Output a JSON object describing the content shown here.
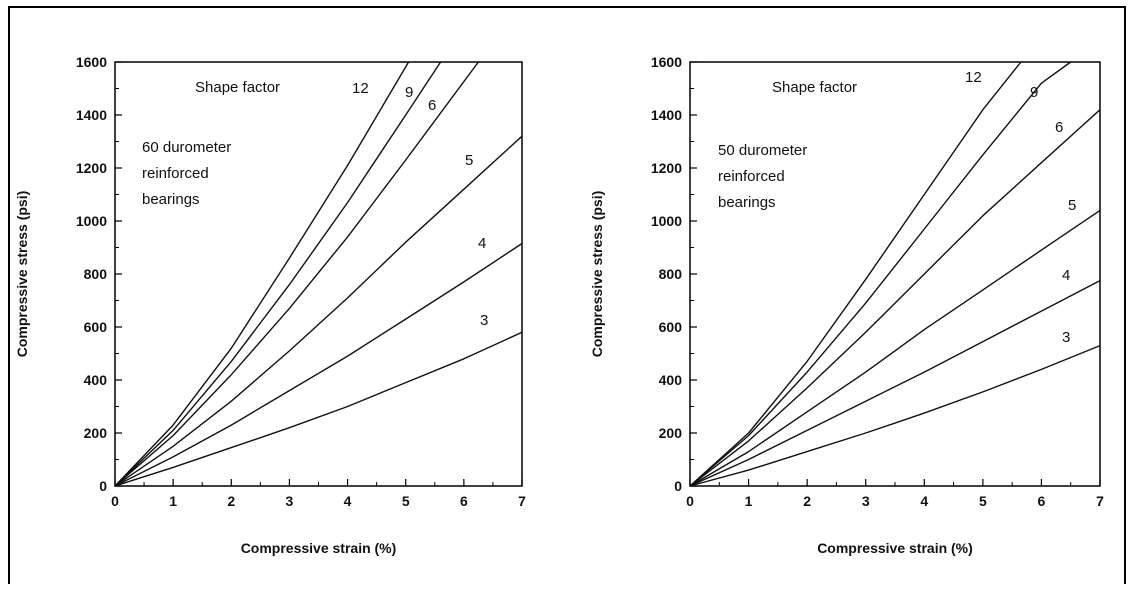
{
  "chart_data": [
    {
      "type": "line",
      "xlabel": "Compressive strain (%)",
      "ylabel": "Compressive stress (psi)",
      "xlim": [
        0,
        7
      ],
      "ylim": [
        0,
        1600
      ],
      "xticks": [
        "0",
        "1",
        "2",
        "3",
        "4",
        "5",
        "6",
        "7"
      ],
      "yticks": [
        "0",
        "200",
        "400",
        "600",
        "800",
        "1000",
        "1200",
        "1400",
        "1600"
      ],
      "legend_title": "Shape factor",
      "annotation": [
        "60 durometer",
        "reinforced",
        "bearings"
      ],
      "series": [
        {
          "name": "12",
          "x": [
            0,
            1,
            2,
            3,
            4,
            5.05
          ],
          "y": [
            0,
            230,
            520,
            860,
            1210,
            1600
          ]
        },
        {
          "name": "9",
          "x": [
            0,
            1,
            2,
            3,
            4,
            5,
            5.6
          ],
          "y": [
            0,
            210,
            470,
            760,
            1070,
            1400,
            1600
          ]
        },
        {
          "name": "6",
          "x": [
            0,
            1,
            2,
            3,
            4,
            5,
            6.25
          ],
          "y": [
            0,
            190,
            420,
            670,
            940,
            1230,
            1600
          ]
        },
        {
          "name": "5",
          "x": [
            0,
            1,
            2,
            3,
            4,
            5,
            6,
            7
          ],
          "y": [
            0,
            150,
            320,
            510,
            710,
            920,
            1120,
            1320
          ]
        },
        {
          "name": "4",
          "x": [
            0,
            1,
            2,
            3,
            4,
            5,
            6,
            7
          ],
          "y": [
            0,
            110,
            230,
            360,
            490,
            630,
            770,
            915
          ]
        },
        {
          "name": "3",
          "x": [
            0,
            1,
            2,
            3,
            4,
            5,
            6,
            7
          ],
          "y": [
            0,
            70,
            145,
            220,
            300,
            390,
            480,
            580
          ]
        }
      ]
    },
    {
      "type": "line",
      "xlabel": "Compressive strain (%)",
      "ylabel": "Compressive stress (psi)",
      "xlim": [
        0,
        7
      ],
      "ylim": [
        0,
        1600
      ],
      "xticks": [
        "0",
        "1",
        "2",
        "3",
        "4",
        "5",
        "6",
        "7"
      ],
      "yticks": [
        "0",
        "200",
        "400",
        "600",
        "800",
        "1000",
        "1200",
        "1400",
        "1600"
      ],
      "legend_title": "Shape factor",
      "annotation": [
        "50 durometer",
        "reinforced",
        "bearings"
      ],
      "series": [
        {
          "name": "12",
          "x": [
            0,
            1,
            2,
            3,
            4,
            5,
            5.65
          ],
          "y": [
            0,
            200,
            470,
            780,
            1100,
            1420,
            1600
          ]
        },
        {
          "name": "9",
          "x": [
            0,
            1,
            2,
            3,
            4,
            5,
            6,
            6.5
          ],
          "y": [
            0,
            190,
            430,
            690,
            970,
            1250,
            1520,
            1600
          ]
        },
        {
          "name": "6",
          "x": [
            0,
            1,
            2,
            3,
            4,
            5,
            6,
            7
          ],
          "y": [
            0,
            170,
            370,
            580,
            800,
            1020,
            1220,
            1420
          ]
        },
        {
          "name": "5",
          "x": [
            0,
            1,
            2,
            3,
            4,
            5,
            6,
            7
          ],
          "y": [
            0,
            130,
            280,
            430,
            590,
            740,
            890,
            1040
          ]
        },
        {
          "name": "4",
          "x": [
            0,
            1,
            2,
            3,
            4,
            5,
            6,
            7
          ],
          "y": [
            0,
            100,
            210,
            320,
            430,
            545,
            660,
            775
          ]
        },
        {
          "name": "3",
          "x": [
            0,
            1,
            2,
            3,
            4,
            5,
            6,
            7
          ],
          "y": [
            0,
            60,
            130,
            200,
            275,
            355,
            440,
            530
          ]
        }
      ]
    }
  ]
}
